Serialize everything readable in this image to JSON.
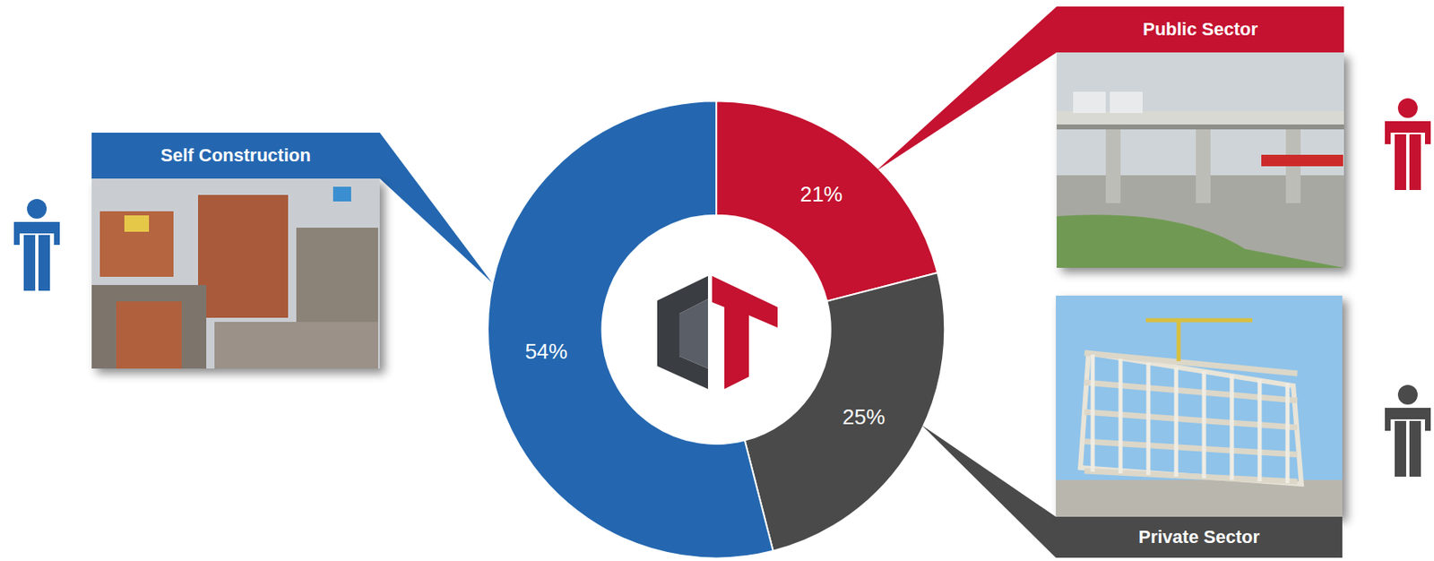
{
  "chart_data": {
    "type": "pie",
    "categories": [
      "Public Sector",
      "Private Sector",
      "Self Construction"
    ],
    "values": [
      21,
      25,
      54
    ],
    "value_labels": [
      "21%",
      "25%",
      "54%"
    ],
    "colors": [
      "#c41230",
      "#4a4a4a",
      "#2467b0"
    ],
    "data_labels": true
  }
}
